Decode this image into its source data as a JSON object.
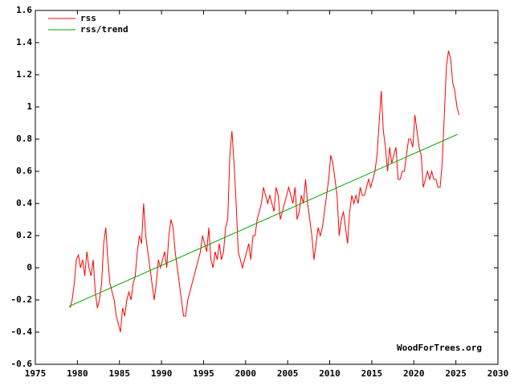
{
  "chart_data": {
    "type": "line",
    "annotation": "WoodForTrees.org",
    "legend": "upper-left",
    "xlim": [
      1975,
      2030
    ],
    "xticks": [
      1975,
      1980,
      1985,
      1990,
      1995,
      2000,
      2005,
      2010,
      2015,
      2020,
      2025,
      2030
    ],
    "ylim": [
      -0.6,
      1.6
    ],
    "yticks": [
      -0.6,
      -0.4,
      -0.2,
      0,
      0.2,
      0.4,
      0.6,
      0.8,
      1,
      1.2,
      1.4,
      1.6
    ],
    "series": [
      {
        "name": "rss",
        "color": "#ff0000",
        "x": [
          1979.125,
          1979.375,
          1979.625,
          1979.875,
          1980.125,
          1980.375,
          1980.625,
          1980.875,
          1981.125,
          1981.375,
          1981.625,
          1981.875,
          1982.125,
          1982.375,
          1982.625,
          1982.875,
          1983.125,
          1983.375,
          1983.625,
          1983.875,
          1984.125,
          1984.375,
          1984.625,
          1984.875,
          1985.125,
          1985.375,
          1985.625,
          1985.875,
          1986.125,
          1986.375,
          1986.625,
          1986.875,
          1987.125,
          1987.375,
          1987.625,
          1987.875,
          1988.125,
          1988.375,
          1988.625,
          1988.875,
          1989.125,
          1989.375,
          1989.625,
          1989.875,
          1990.125,
          1990.375,
          1990.625,
          1990.875,
          1991.125,
          1991.375,
          1991.625,
          1991.875,
          1992.125,
          1992.375,
          1992.625,
          1992.875,
          1993.125,
          1993.375,
          1993.625,
          1993.875,
          1994.125,
          1994.375,
          1994.625,
          1994.875,
          1995.125,
          1995.375,
          1995.625,
          1995.875,
          1996.125,
          1996.375,
          1996.625,
          1996.875,
          1997.125,
          1997.375,
          1997.625,
          1997.875,
          1998.125,
          1998.375,
          1998.625,
          1998.875,
          1999.125,
          1999.375,
          1999.625,
          1999.875,
          2000.125,
          2000.375,
          2000.625,
          2000.875,
          2001.125,
          2001.375,
          2001.625,
          2001.875,
          2002.125,
          2002.375,
          2002.625,
          2002.875,
          2003.125,
          2003.375,
          2003.625,
          2003.875,
          2004.125,
          2004.375,
          2004.625,
          2004.875,
          2005.125,
          2005.375,
          2005.625,
          2005.875,
          2006.125,
          2006.375,
          2006.625,
          2006.875,
          2007.125,
          2007.375,
          2007.625,
          2007.875,
          2008.125,
          2008.375,
          2008.625,
          2008.875,
          2009.125,
          2009.375,
          2009.625,
          2009.875,
          2010.125,
          2010.375,
          2010.625,
          2010.875,
          2011.125,
          2011.375,
          2011.625,
          2011.875,
          2012.125,
          2012.375,
          2012.625,
          2012.875,
          2013.125,
          2013.375,
          2013.625,
          2013.875,
          2014.125,
          2014.375,
          2014.625,
          2014.875,
          2015.125,
          2015.375,
          2015.625,
          2015.875,
          2016.125,
          2016.375,
          2016.625,
          2016.875,
          2017.125,
          2017.375,
          2017.625,
          2017.875,
          2018.125,
          2018.375,
          2018.625,
          2018.875,
          2019.125,
          2019.375,
          2019.625,
          2019.875,
          2020.125,
          2020.375,
          2020.625,
          2020.875,
          2021.125,
          2021.375,
          2021.625,
          2021.875,
          2022.125,
          2022.375,
          2022.625,
          2022.875,
          2023.125,
          2023.375,
          2023.625,
          2023.875,
          2024.125,
          2024.375,
          2024.625,
          2024.875,
          2025.125,
          2025.375
        ],
        "values": [
          -0.25,
          -0.2,
          -0.1,
          0.05,
          0.08,
          0.0,
          0.05,
          -0.05,
          0.1,
          0.0,
          -0.05,
          0.05,
          -0.15,
          -0.25,
          -0.2,
          -0.1,
          0.15,
          0.25,
          0.05,
          -0.1,
          -0.15,
          -0.2,
          -0.3,
          -0.35,
          -0.4,
          -0.25,
          -0.3,
          -0.2,
          -0.15,
          -0.2,
          -0.1,
          -0.05,
          0.1,
          0.2,
          0.15,
          0.4,
          0.2,
          0.1,
          0.0,
          -0.1,
          -0.2,
          -0.1,
          0.05,
          0.0,
          0.05,
          0.1,
          0.0,
          0.2,
          0.3,
          0.25,
          0.1,
          0.0,
          -0.1,
          -0.2,
          -0.3,
          -0.3,
          -0.2,
          -0.15,
          -0.1,
          -0.05,
          0.0,
          0.05,
          0.1,
          0.2,
          0.15,
          0.1,
          0.25,
          0.05,
          0.0,
          0.1,
          0.05,
          0.15,
          0.05,
          0.1,
          0.25,
          0.3,
          0.7,
          0.85,
          0.65,
          0.4,
          0.1,
          0.05,
          0.0,
          0.05,
          0.1,
          0.15,
          0.05,
          0.2,
          0.2,
          0.3,
          0.35,
          0.4,
          0.5,
          0.45,
          0.4,
          0.45,
          0.4,
          0.35,
          0.5,
          0.45,
          0.3,
          0.35,
          0.4,
          0.45,
          0.5,
          0.45,
          0.4,
          0.5,
          0.3,
          0.35,
          0.45,
          0.4,
          0.55,
          0.4,
          0.3,
          0.2,
          0.05,
          0.15,
          0.25,
          0.2,
          0.25,
          0.35,
          0.45,
          0.55,
          0.7,
          0.65,
          0.55,
          0.45,
          0.2,
          0.3,
          0.35,
          0.25,
          0.15,
          0.35,
          0.45,
          0.4,
          0.45,
          0.4,
          0.5,
          0.45,
          0.45,
          0.5,
          0.55,
          0.5,
          0.55,
          0.6,
          0.7,
          0.9,
          1.1,
          0.85,
          0.75,
          0.6,
          0.75,
          0.65,
          0.7,
          0.75,
          0.55,
          0.55,
          0.6,
          0.6,
          0.7,
          0.8,
          0.8,
          0.75,
          0.95,
          0.85,
          0.75,
          0.7,
          0.5,
          0.55,
          0.6,
          0.55,
          0.6,
          0.55,
          0.55,
          0.5,
          0.5,
          0.65,
          0.95,
          1.25,
          1.35,
          1.3,
          1.15,
          1.1,
          1.0,
          0.95
        ]
      },
      {
        "name": "rss/trend",
        "color": "#00aa00",
        "x": [
          1979,
          2025.2
        ],
        "values": [
          -0.24,
          0.83
        ]
      }
    ]
  }
}
